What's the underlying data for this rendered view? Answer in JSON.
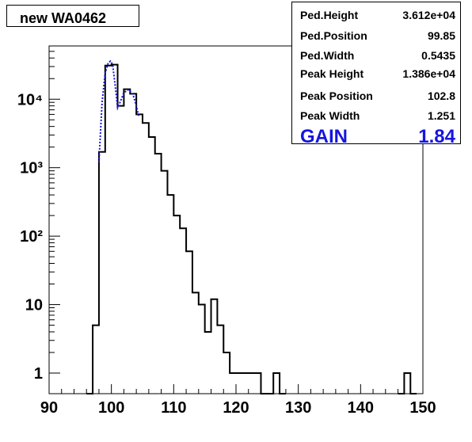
{
  "title": "new WA0462",
  "stats": {
    "rows": [
      {
        "key": "Ped.Height",
        "value": "3.612e+04"
      },
      {
        "key": "Ped.Position",
        "value": "99.85"
      },
      {
        "key": "Ped.Width",
        "value": "0.5435"
      },
      {
        "key": "Peak Height",
        "value": "1.386e+04"
      },
      {
        "key": "Peak Position",
        "value": "102.8"
      },
      {
        "key": "Peak Width",
        "value": "1.251"
      }
    ],
    "gain_label": "GAIN",
    "gain_value": "1.84"
  },
  "colors": {
    "histogram": "#000000",
    "fit": "#1515e0",
    "gain": "#1515e0"
  },
  "chart_data": {
    "type": "histogram",
    "scale_y": "log",
    "xlim": [
      90,
      150
    ],
    "ylim": [
      0.5,
      60000
    ],
    "bin_width": 1,
    "x_ticks": [
      90,
      100,
      110,
      120,
      130,
      140,
      150
    ],
    "y_ticks": [
      {
        "value": 1,
        "label": "1"
      },
      {
        "value": 10,
        "label": "10"
      },
      {
        "value": 100,
        "label": "10²"
      },
      {
        "value": 1000,
        "label": "10³"
      },
      {
        "value": 10000,
        "label": "10⁴"
      }
    ],
    "bins": [
      {
        "x": 96,
        "y": 0
      },
      {
        "x": 97,
        "y": 5
      },
      {
        "x": 98,
        "y": 1700
      },
      {
        "x": 99,
        "y": 31000
      },
      {
        "x": 100,
        "y": 32000
      },
      {
        "x": 101,
        "y": 8000
      },
      {
        "x": 102,
        "y": 14000
      },
      {
        "x": 103,
        "y": 12000
      },
      {
        "x": 104,
        "y": 6000
      },
      {
        "x": 105,
        "y": 4500
      },
      {
        "x": 106,
        "y": 2800
      },
      {
        "x": 107,
        "y": 1600
      },
      {
        "x": 108,
        "y": 900
      },
      {
        "x": 109,
        "y": 400
      },
      {
        "x": 110,
        "y": 200
      },
      {
        "x": 111,
        "y": 130
      },
      {
        "x": 112,
        "y": 60
      },
      {
        "x": 113,
        "y": 15
      },
      {
        "x": 114,
        "y": 10
      },
      {
        "x": 115,
        "y": 4
      },
      {
        "x": 116,
        "y": 12
      },
      {
        "x": 117,
        "y": 5
      },
      {
        "x": 118,
        "y": 2
      },
      {
        "x": 119,
        "y": 1
      },
      {
        "x": 120,
        "y": 1
      },
      {
        "x": 121,
        "y": 1
      },
      {
        "x": 122,
        "y": 1
      },
      {
        "x": 123,
        "y": 1
      },
      {
        "x": 124,
        "y": 0
      },
      {
        "x": 125,
        "y": 0
      },
      {
        "x": 126,
        "y": 1
      },
      {
        "x": 127,
        "y": 0
      },
      {
        "x": 146,
        "y": 0
      },
      {
        "x": 147,
        "y": 1
      },
      {
        "x": 148,
        "y": 0
      }
    ],
    "fit": [
      {
        "x": 98.0,
        "y": 1200
      },
      {
        "x": 98.5,
        "y": 9000
      },
      {
        "x": 99.0,
        "y": 24000
      },
      {
        "x": 99.5,
        "y": 34000
      },
      {
        "x": 99.85,
        "y": 36000
      },
      {
        "x": 100.2,
        "y": 32000
      },
      {
        "x": 100.6,
        "y": 16000
      },
      {
        "x": 101.0,
        "y": 7500
      },
      {
        "x": 101.5,
        "y": 9500
      },
      {
        "x": 102.0,
        "y": 12500
      },
      {
        "x": 102.8,
        "y": 13860
      },
      {
        "x": 103.5,
        "y": 11500
      },
      {
        "x": 104.0,
        "y": 8000
      },
      {
        "x": 104.4,
        "y": 5500
      }
    ]
  }
}
